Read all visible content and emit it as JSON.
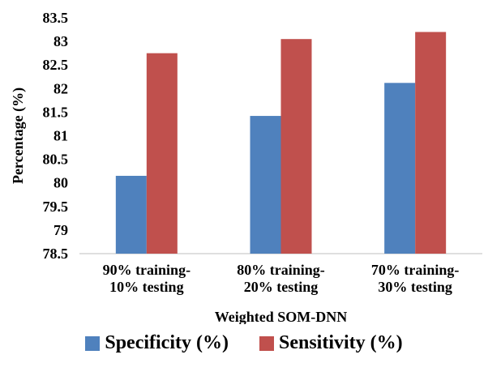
{
  "chart_data": {
    "type": "bar",
    "categories": [
      [
        "90% training-",
        "10% testing"
      ],
      [
        "80% training-",
        "20% testing"
      ],
      [
        "70% training-",
        "30% testing"
      ]
    ],
    "series": [
      {
        "name": "Specificity (%)",
        "color": "#4f81bd",
        "values": [
          80.15,
          81.42,
          82.12
        ]
      },
      {
        "name": "Sensitivity (%)",
        "color": "#c0504d",
        "values": [
          82.75,
          83.05,
          83.2
        ]
      }
    ],
    "xlabel": "Weighted SOM-DNN",
    "ylabel": "Percentage (%)",
    "ylim": [
      78.5,
      83.5
    ],
    "yticks": [
      "78.5",
      "79",
      "79.5",
      "80",
      "80.5",
      "81",
      "81.5",
      "82",
      "82.5",
      "83",
      "83.5"
    ],
    "grid": false,
    "legend_position": "bottom"
  }
}
